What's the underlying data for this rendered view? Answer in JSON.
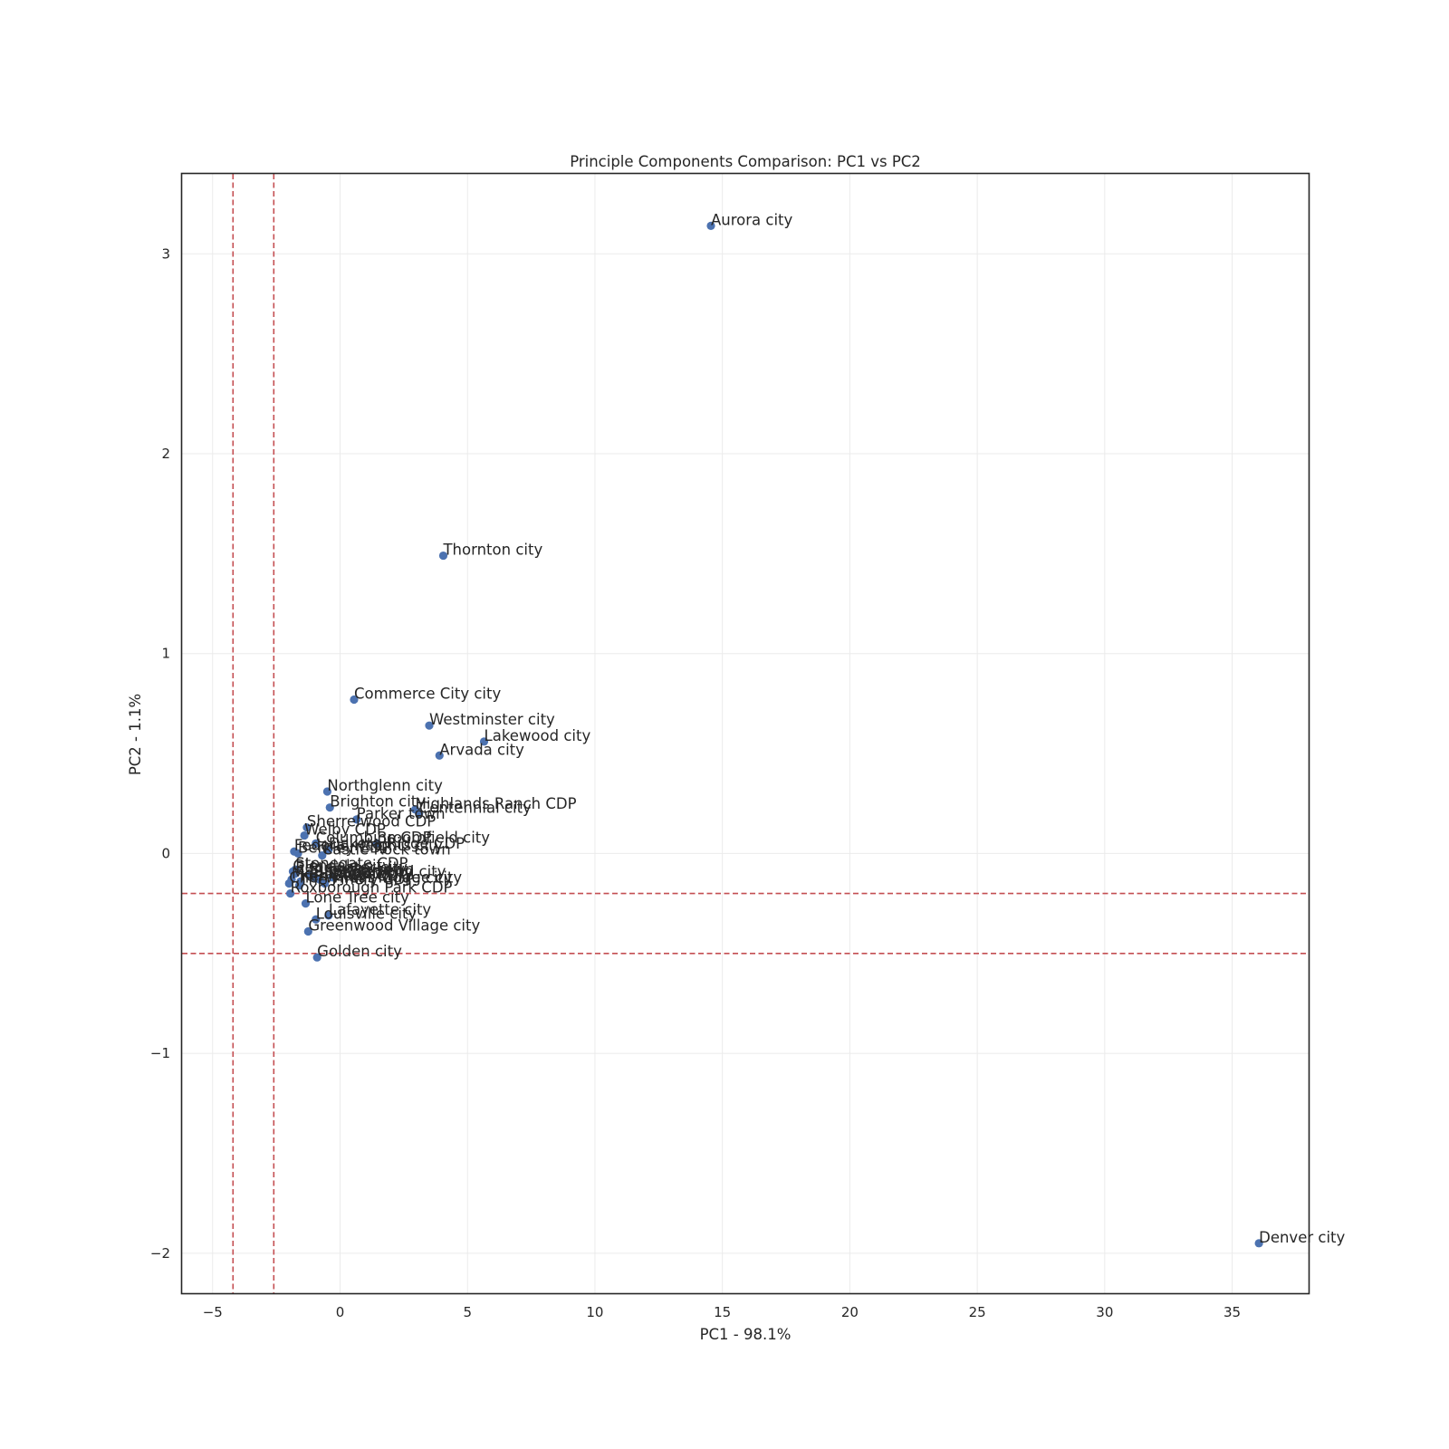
{
  "chart_data": {
    "type": "scatter",
    "title": "Principle Components Comparison: PC1 vs PC2",
    "xlabel": "PC1 - 98.1%",
    "ylabel": "PC2 - 1.1%",
    "xlim": [
      -6.2,
      38
    ],
    "ylim": [
      -2.2,
      3.4
    ],
    "xticks": [
      -5,
      0,
      5,
      10,
      15,
      20,
      25,
      30,
      35
    ],
    "yticks": [
      -2,
      -1,
      0,
      1,
      2,
      3
    ],
    "grid": true,
    "point_color": "#4c72b0",
    "reference_line_color": "#c44e52",
    "vertical_reference_lines": [
      -4.2,
      -2.6
    ],
    "horizontal_reference_lines": [
      -0.2,
      -0.5
    ],
    "points": [
      {
        "label": "Aurora city",
        "x": 14.55,
        "y": 3.14
      },
      {
        "label": "Thornton city",
        "x": 4.05,
        "y": 1.49
      },
      {
        "label": "Commerce City city",
        "x": 0.55,
        "y": 0.77
      },
      {
        "label": "Westminster city",
        "x": 3.5,
        "y": 0.64
      },
      {
        "label": "Lakewood city",
        "x": 5.65,
        "y": 0.56
      },
      {
        "label": "Arvada city",
        "x": 3.9,
        "y": 0.49
      },
      {
        "label": "Northglenn city",
        "x": -0.5,
        "y": 0.31
      },
      {
        "label": "Brighton city",
        "x": -0.4,
        "y": 0.23
      },
      {
        "label": "Highlands Ranch CDP",
        "x": 2.95,
        "y": 0.22
      },
      {
        "label": "Centennial city",
        "x": 3.1,
        "y": 0.2
      },
      {
        "label": "Parker town",
        "x": 0.65,
        "y": 0.17
      },
      {
        "label": "Sherrelwood CDP",
        "x": -1.3,
        "y": 0.13
      },
      {
        "label": "Welby CDP",
        "x": -1.4,
        "y": 0.09
      },
      {
        "label": "Columbine CDP",
        "x": -0.95,
        "y": 0.05
      },
      {
        "label": "Broomfield city",
        "x": 1.45,
        "y": 0.05
      },
      {
        "label": "Federal Heights city",
        "x": -1.8,
        "y": 0.01
      },
      {
        "label": "Dakota Ridge CDP",
        "x": -0.45,
        "y": 0.02
      },
      {
        "label": "Berkley CDP",
        "x": -1.65,
        "y": 0.0
      },
      {
        "label": "Castle Rock town",
        "x": -0.7,
        "y": -0.01
      },
      {
        "label": "Glendale city",
        "x": -1.85,
        "y": -0.09
      },
      {
        "label": "Edgewater city",
        "x": -1.75,
        "y": -0.1
      },
      {
        "label": "Superior town",
        "x": -1.2,
        "y": -0.11
      },
      {
        "label": "Sheridan city",
        "x": -1.0,
        "y": -0.12
      },
      {
        "label": "Littleton city",
        "x": -0.8,
        "y": -0.13
      },
      {
        "label": "Englewood city",
        "x": -0.3,
        "y": -0.12
      },
      {
        "label": "Wheat Ridge city",
        "x": -0.6,
        "y": -0.15
      },
      {
        "label": "Stonegate CDP",
        "x": -1.75,
        "y": -0.08
      },
      {
        "label": "Ken Caryl CDP",
        "x": -1.55,
        "y": -0.14
      },
      {
        "label": "Cherry Hills Village city",
        "x": -2.0,
        "y": -0.15
      },
      {
        "label": "The Pinery CDP",
        "x": -1.6,
        "y": -0.16
      },
      {
        "label": "Meridian CDP",
        "x": -1.9,
        "y": -0.13
      },
      {
        "label": "Roxborough Park CDP",
        "x": -1.95,
        "y": -0.2
      },
      {
        "label": "Lone Tree city",
        "x": -1.35,
        "y": -0.25
      },
      {
        "label": "Lafayette city",
        "x": -0.45,
        "y": -0.31
      },
      {
        "label": "Louisville city",
        "x": -0.95,
        "y": -0.33
      },
      {
        "label": "Greenwood Village city",
        "x": -1.25,
        "y": -0.39
      },
      {
        "label": "Golden city",
        "x": -0.9,
        "y": -0.52
      },
      {
        "label": "Denver city",
        "x": 36.05,
        "y": -1.95
      }
    ]
  }
}
